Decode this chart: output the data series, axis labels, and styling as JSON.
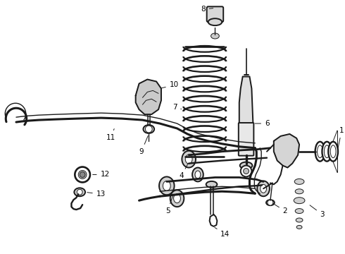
{
  "background_color": "#ffffff",
  "line_color": "#1a1a1a",
  "label_color": "#000000",
  "fig_width": 4.9,
  "fig_height": 3.6,
  "dpi": 100,
  "font_size": 7.5,
  "lw_main": 1.4,
  "lw_thin": 0.7,
  "lw_thick": 2.2
}
